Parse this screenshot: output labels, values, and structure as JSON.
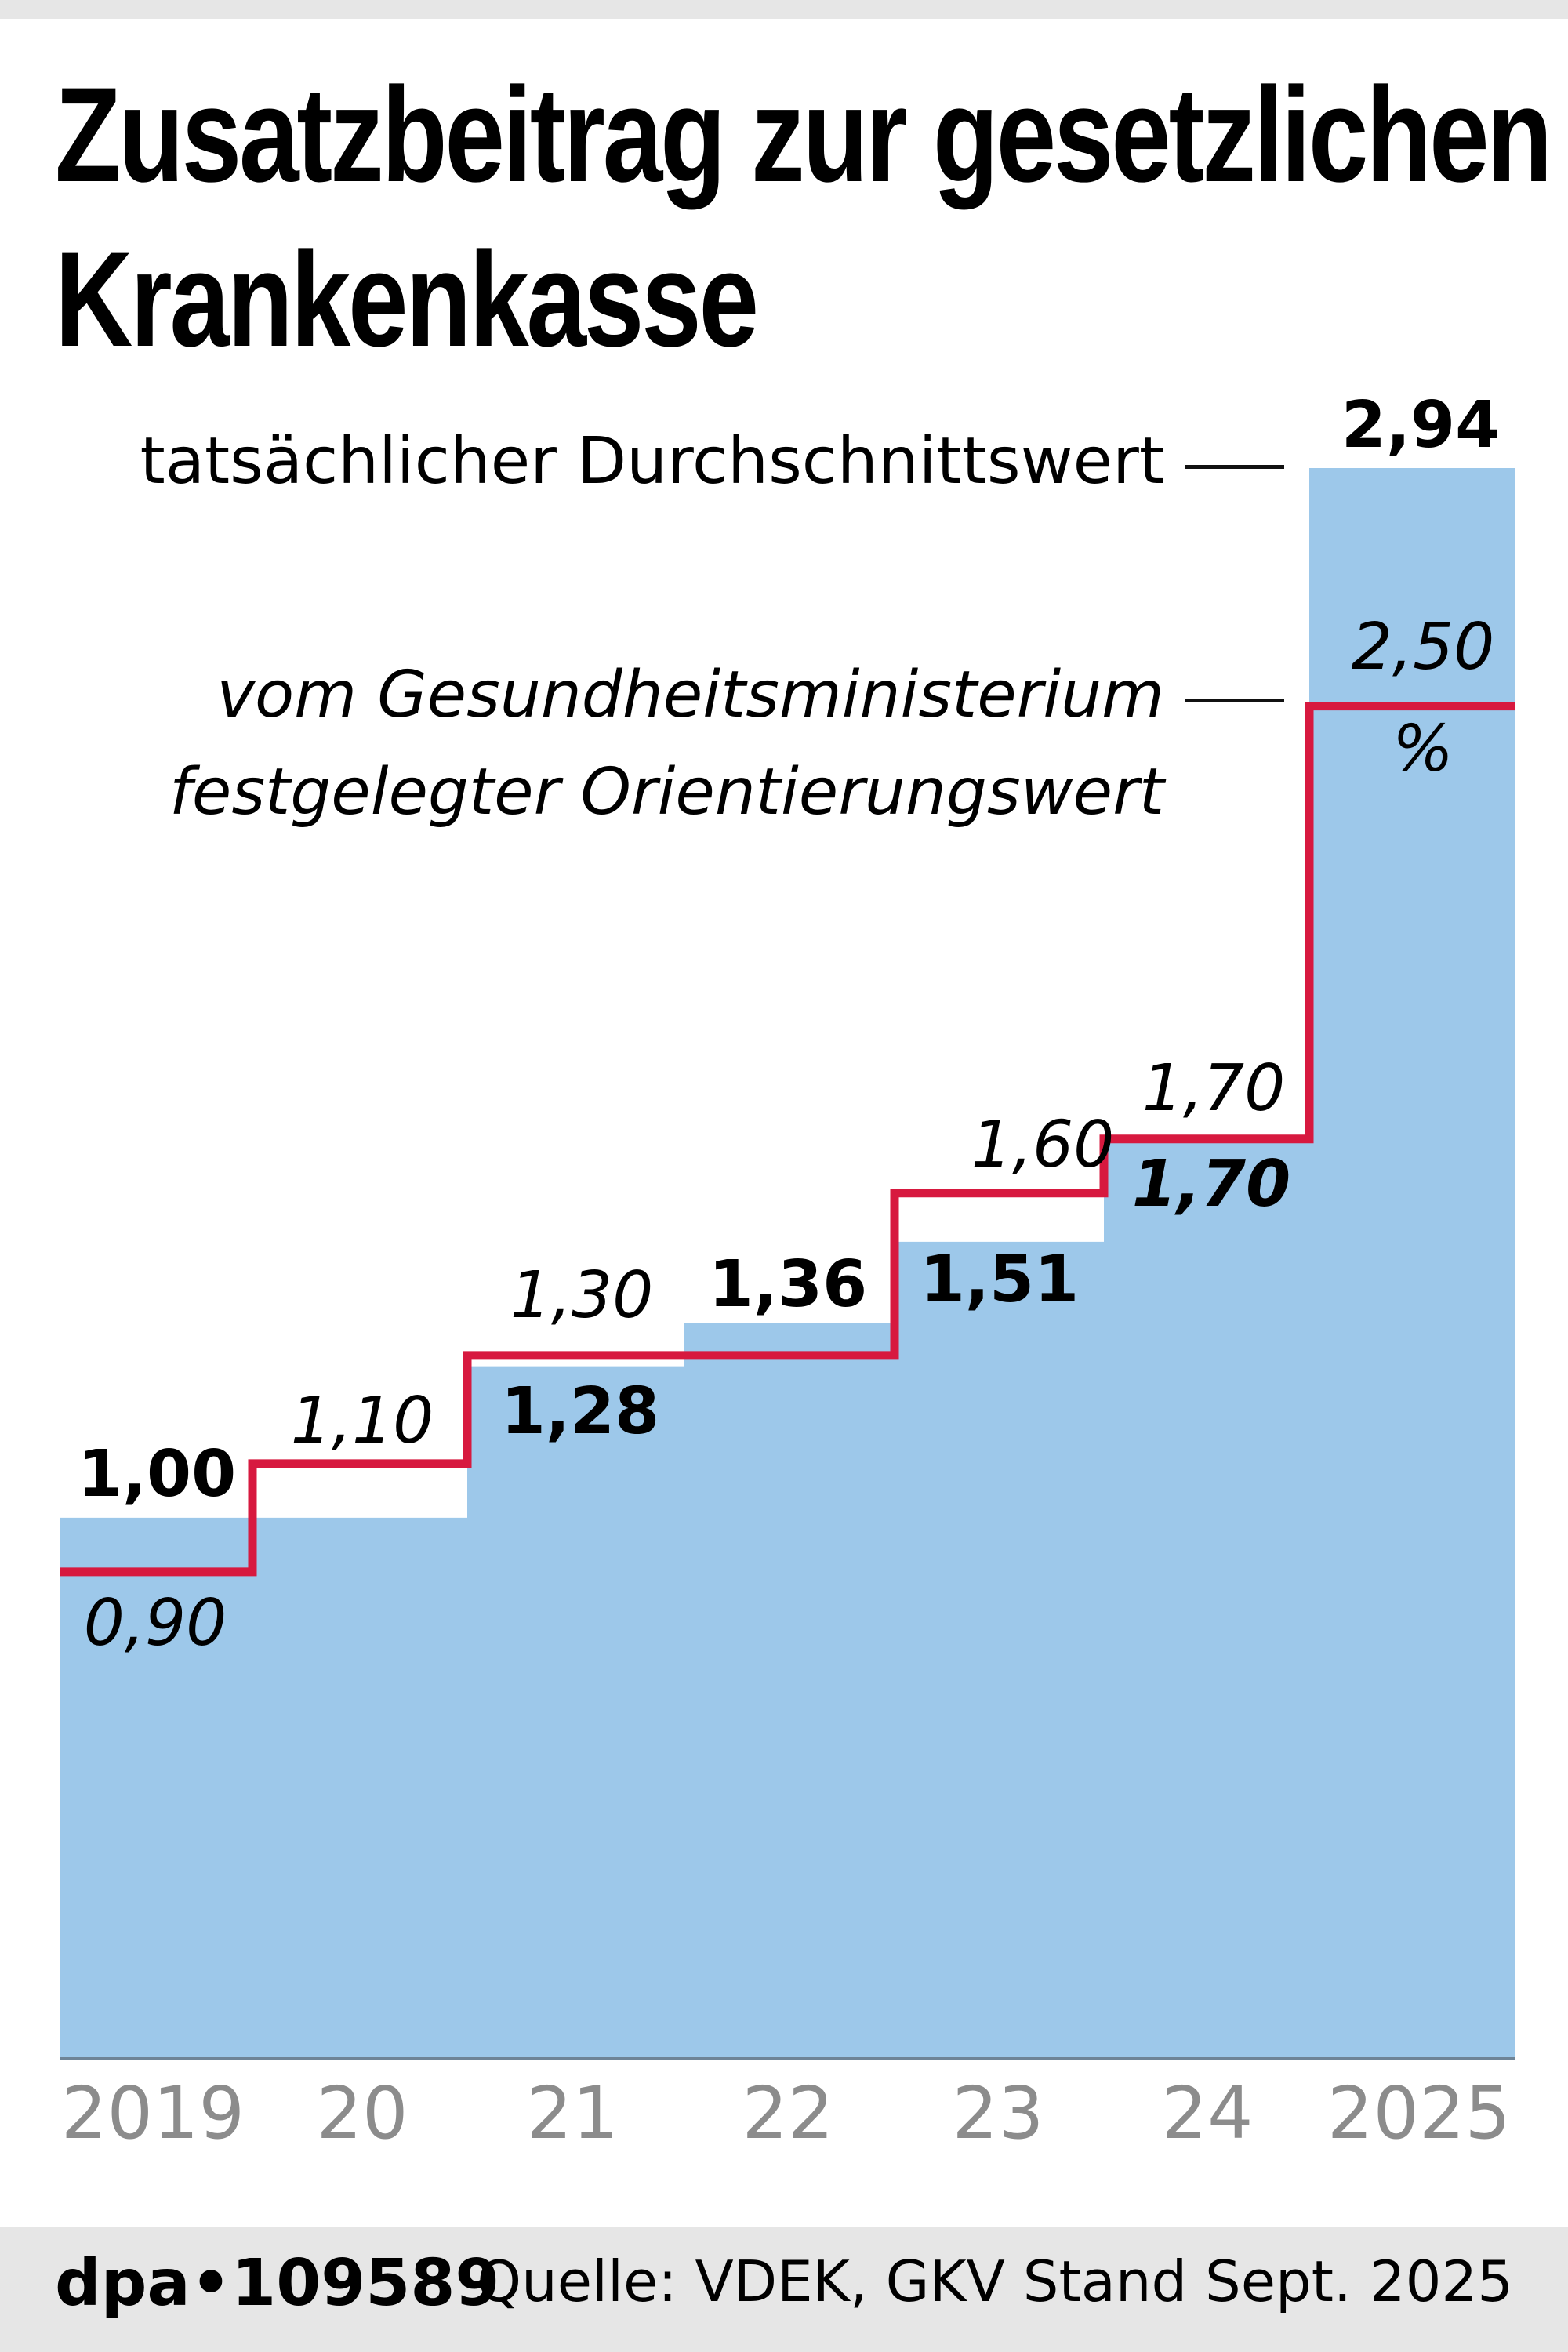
{
  "title": {
    "line1": "Zusatzbeitrag zur gesetzlichen",
    "line2": "Krankenkasse"
  },
  "legend": {
    "actual": "tatsächlicher Durchschnittswert",
    "orientation_line1": "vom Gesundheitsministerium",
    "orientation_line2": "festgelegter Orientierungswert"
  },
  "colors": {
    "bar": "#9DC8EA",
    "line": "#D7193F",
    "axis_labels": "#8C8C8C",
    "band": "#E6E6E6"
  },
  "unit_label": "%",
  "footer": {
    "agency": "dpa•109589",
    "source": "Quelle: VDEK, GKV Stand Sept. 2025"
  },
  "chart_data": {
    "type": "bar",
    "title": "Zusatzbeitrag zur gesetzlichen Krankenkasse",
    "xlabel": "",
    "ylabel": "%",
    "categories": [
      "2019",
      "20",
      "21",
      "22",
      "23",
      "24",
      "2025"
    ],
    "series": [
      {
        "name": "tatsächlicher Durchschnittswert",
        "style": "bar",
        "values": [
          1.0,
          1.0,
          1.28,
          1.36,
          1.51,
          1.7,
          2.94
        ],
        "labels": [
          "1,00",
          null,
          "1,28",
          "1,36",
          "1,51",
          "1,70",
          "2,94"
        ]
      },
      {
        "name": "vom Gesundheitsministerium festgelegter Orientierungswert",
        "style": "step-line",
        "values": [
          0.9,
          1.1,
          1.3,
          1.3,
          1.6,
          1.7,
          2.5
        ],
        "labels": [
          "0,90",
          "1,10",
          "1,30",
          null,
          "1,60",
          "1,70",
          "2,50"
        ]
      }
    ],
    "ylim": [
      0,
      2.94
    ],
    "grid": false,
    "legend_position": "top-left, inline labels"
  }
}
